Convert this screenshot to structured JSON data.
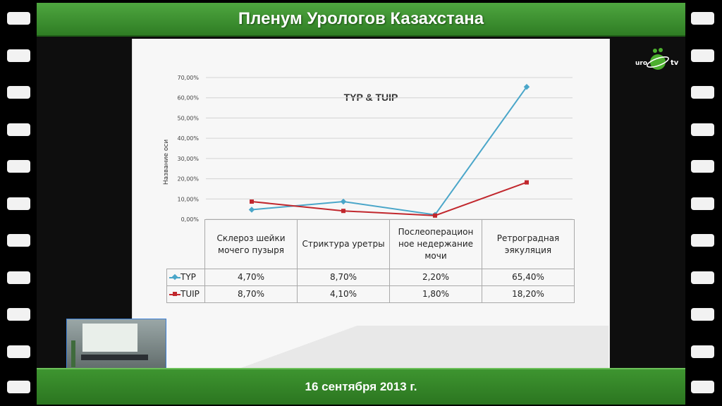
{
  "header": {
    "title": "Пленум Урологов Казахстана"
  },
  "footer": {
    "date": "16 сентября 2013 г."
  },
  "logo": {
    "left": "uro",
    "right": "tv"
  },
  "colors": {
    "tur": "#4aa6c9",
    "tuip": "#c1272d",
    "green": "#2f7d24"
  },
  "chart_data": {
    "type": "line",
    "title": "TYP & TUIP",
    "ylabel": "Название оси",
    "ylim": [
      0,
      70
    ],
    "yticks": [
      "0,00%",
      "10,00%",
      "20,00%",
      "30,00%",
      "40,00%",
      "50,00%",
      "60,00%",
      "70,00%"
    ],
    "categories": [
      "Склероз шейки мочего пузыря",
      "Стриктура уретры",
      "Послеоперацион ное недержание мочи",
      "Ретроградная эякуляция"
    ],
    "series": [
      {
        "name": "TYP",
        "values": [
          4.7,
          8.7,
          2.2,
          65.4
        ],
        "labels": [
          "4,70%",
          "8,70%",
          "2,20%",
          "65,40%"
        ]
      },
      {
        "name": "TUIP",
        "values": [
          8.7,
          4.1,
          1.8,
          18.2
        ],
        "labels": [
          "8,70%",
          "4,10%",
          "1,80%",
          "18,20%"
        ]
      }
    ]
  }
}
